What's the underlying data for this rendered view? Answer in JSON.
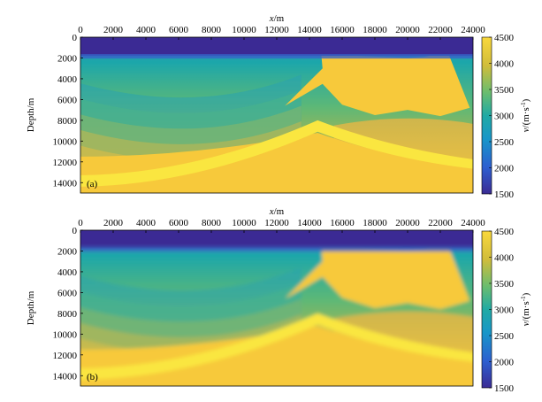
{
  "chart_data": [
    {
      "type": "heatmap",
      "panel_label": "(a)",
      "xlabel_var": "x",
      "xlabel_unit": "/m",
      "ylabel": "Depth/m",
      "xlim": [
        0,
        24000
      ],
      "ylim": [
        0,
        15000
      ],
      "x_ticks": [
        "0",
        "2000",
        "4000",
        "6000",
        "8000",
        "10000",
        "12000",
        "14000",
        "16000",
        "18000",
        "20000",
        "22000",
        "24000"
      ],
      "y_ticks": [
        "0",
        "2000",
        "4000",
        "6000",
        "8000",
        "10000",
        "12000",
        "14000"
      ],
      "colorbar": {
        "label_var": "v",
        "label_unit": "/(m·s",
        "label_exp": "-1",
        "label_close": ")",
        "range": [
          1500,
          4500
        ],
        "ticks": [
          "1500",
          "2000",
          "2500",
          "3000",
          "3500",
          "4000",
          "4500"
        ]
      },
      "features": {
        "water_bottom_depth": 1800,
        "salt_top": [
          [
            14700,
            1300
          ],
          [
            15500,
            1500
          ],
          [
            17000,
            1800
          ],
          [
            18500,
            1900
          ],
          [
            20000,
            2000
          ],
          [
            21000,
            1900
          ],
          [
            22000,
            1600
          ],
          [
            22400,
            1200
          ]
        ],
        "salt_base": [
          [
            14800,
            4500
          ],
          [
            16000,
            6500
          ],
          [
            18000,
            7500
          ],
          [
            20000,
            7000
          ],
          [
            22000,
            7600
          ],
          [
            23800,
            6800
          ]
        ],
        "arch_crest": [
          14500,
          8000
        ],
        "smoothed": false
      }
    },
    {
      "type": "heatmap",
      "panel_label": "(b)",
      "xlabel_var": "x",
      "xlabel_unit": "/m",
      "ylabel": "Depth/m",
      "xlim": [
        0,
        24000
      ],
      "ylim": [
        0,
        15000
      ],
      "x_ticks": [
        "0",
        "2000",
        "4000",
        "6000",
        "8000",
        "10000",
        "12000",
        "14000",
        "16000",
        "18000",
        "20000",
        "22000",
        "24000"
      ],
      "y_ticks": [
        "0",
        "2000",
        "4000",
        "6000",
        "8000",
        "10000",
        "12000",
        "14000"
      ],
      "colorbar": {
        "label_var": "v",
        "label_unit": "/(m·s",
        "label_exp": "-1",
        "label_close": ")",
        "range": [
          1500,
          4500
        ],
        "ticks": [
          "1500",
          "2000",
          "2500",
          "3000",
          "3500",
          "4000",
          "4500"
        ]
      },
      "features": {
        "water_bottom_depth": 1800,
        "salt_top": [
          [
            14700,
            1300
          ],
          [
            15500,
            1500
          ],
          [
            17000,
            1800
          ],
          [
            18500,
            1900
          ],
          [
            20000,
            2000
          ],
          [
            21000,
            1900
          ],
          [
            22000,
            1600
          ],
          [
            22400,
            1200
          ]
        ],
        "salt_base": [
          [
            14800,
            4500
          ],
          [
            16000,
            6500
          ],
          [
            18000,
            7500
          ],
          [
            20000,
            7000
          ],
          [
            22000,
            7600
          ],
          [
            23800,
            6800
          ]
        ],
        "arch_crest": [
          14500,
          8000
        ],
        "smoothed": true
      }
    }
  ],
  "colors": {
    "low": "#3b2c94",
    "mid": "#1fa3a8",
    "high": "#f9d53a",
    "salt": "#f7c93a",
    "band": "#fae63f"
  }
}
